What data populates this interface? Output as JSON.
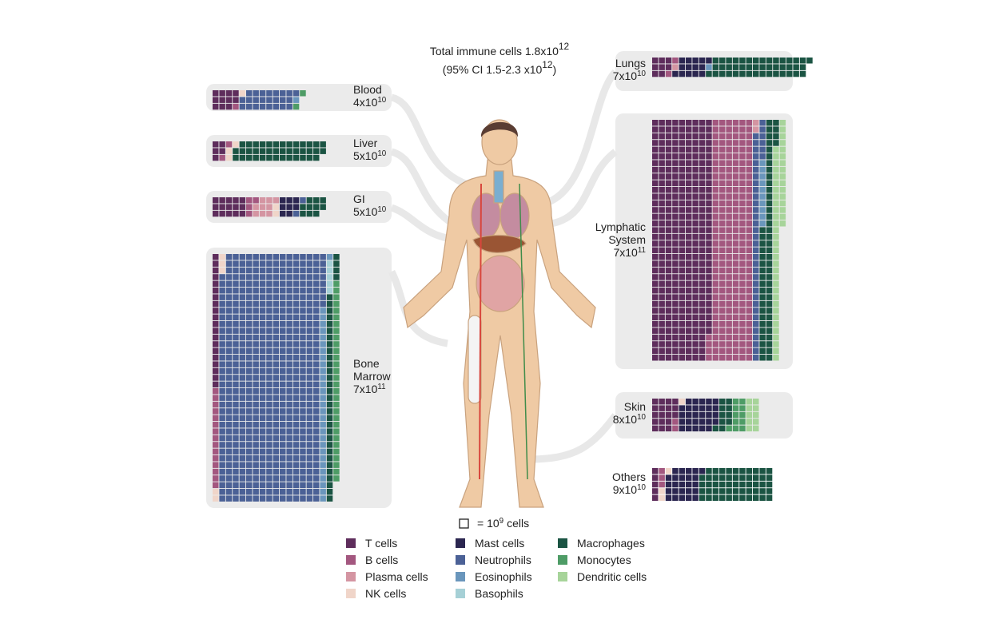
{
  "chart_data": {
    "type": "waffle",
    "title": {
      "text": "Total immune cells 1.8x10",
      "exp": "12"
    },
    "subtitle": {
      "text": "(95% CI 1.5-2.3 x10",
      "exp": "12",
      "end": ")"
    },
    "key": {
      "text": "= 10",
      "exp": "9",
      "unit": "cells"
    },
    "cell_types": [
      {
        "name": "T cells",
        "color": "#5e2d5c"
      },
      {
        "name": "B cells",
        "color": "#a3577f"
      },
      {
        "name": "Plasma cells",
        "color": "#d495a2"
      },
      {
        "name": "NK cells",
        "color": "#f0d5c9"
      },
      {
        "name": "Mast cells",
        "color": "#2b2650"
      },
      {
        "name": "Neutrophils",
        "color": "#4b6196"
      },
      {
        "name": "Eosinophils",
        "color": "#6a96bc"
      },
      {
        "name": "Basophils",
        "color": "#a6d0d6"
      },
      {
        "name": "Macrophages",
        "color": "#1b5443"
      },
      {
        "name": "Monocytes",
        "color": "#4e9c66"
      },
      {
        "name": "Dendritic cells",
        "color": "#a7d49a"
      }
    ],
    "organs": [
      {
        "name": "Blood",
        "amount": "4x10",
        "exp": "10",
        "counts": [
          11,
          1,
          0,
          1,
          0,
          24,
          1,
          0,
          0,
          2,
          0
        ]
      },
      {
        "name": "Liver",
        "amount": "5x10",
        "exp": "10",
        "counts": [
          5,
          2,
          0,
          3,
          0,
          0,
          0,
          0,
          40,
          0,
          0
        ]
      },
      {
        "name": "GI",
        "amount": "5x10",
        "exp": "10",
        "counts": [
          15,
          4,
          9,
          2,
          8,
          2,
          0,
          0,
          10,
          0,
          0
        ]
      },
      {
        "name": "Bone Marrow",
        "amount": "7x10",
        "exp": "11",
        "counts": [
          20,
          15,
          0,
          5,
          0,
          560,
          30,
          5,
          35,
          30,
          0
        ]
      },
      {
        "name": "Lungs",
        "amount": "7x10",
        "exp": "10",
        "counts": [
          8,
          2,
          1,
          0,
          14,
          0,
          1,
          0,
          44,
          0,
          0
        ]
      },
      {
        "name": "Lymphatic System",
        "amount": "7x10",
        "exp": "11",
        "counts": [
          320,
          220,
          2,
          0,
          0,
          40,
          10,
          0,
          60,
          0,
          48
        ]
      },
      {
        "name": "Skin",
        "amount": "8x10",
        "exp": "10",
        "counts": [
          18,
          2,
          0,
          1,
          28,
          0,
          0,
          0,
          10,
          11,
          10
        ]
      },
      {
        "name": "Others",
        "amount": "9x10",
        "exp": "10",
        "counts": [
          5,
          3,
          0,
          3,
          25,
          0,
          0,
          0,
          54,
          0,
          0
        ]
      }
    ]
  }
}
